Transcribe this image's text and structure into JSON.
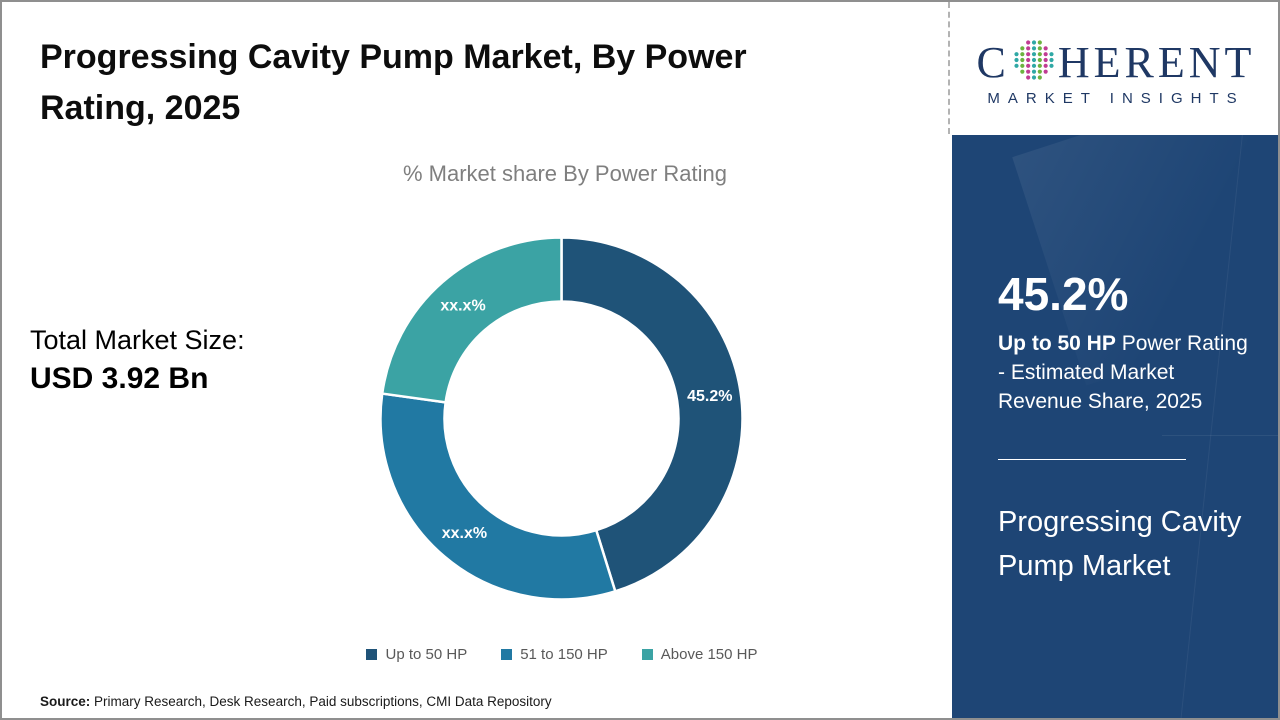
{
  "header": {
    "title": "Progressing Cavity Pump Market, By Power Rating, 2025"
  },
  "logo": {
    "prefix": "C",
    "suffix": "HERENT",
    "subtitle": "MARKET INSIGHTS"
  },
  "chart_data": {
    "type": "pie",
    "donut": true,
    "title": "% Market share By Power Rating",
    "categories": [
      "Up to 50 HP",
      "51 to 150 HP",
      "Above 150 HP"
    ],
    "values": [
      45.2,
      32.0,
      22.8
    ],
    "display_labels": [
      "45.2%",
      "xx.x%",
      "xx.x%"
    ],
    "colors": [
      "#1F5378",
      "#2179A3",
      "#3BA3A4"
    ],
    "start_angle_deg": 0,
    "direction": "clockwise",
    "legend_position": "bottom"
  },
  "stats": {
    "total_label": "Total Market Size:",
    "total_value": "USD 3.92 Bn"
  },
  "panel": {
    "highlight_value": "45.2%",
    "highlight_bold": "Up to 50 HP",
    "highlight_rest": " Power Rating - Estimated Market Revenue Share, 2025",
    "title": "Progressing Cavity Pump Market"
  },
  "footer": {
    "source_label": "Source:",
    "source_text": " Primary Research, Desk Research, Paid subscriptions, CMI Data Repository"
  }
}
